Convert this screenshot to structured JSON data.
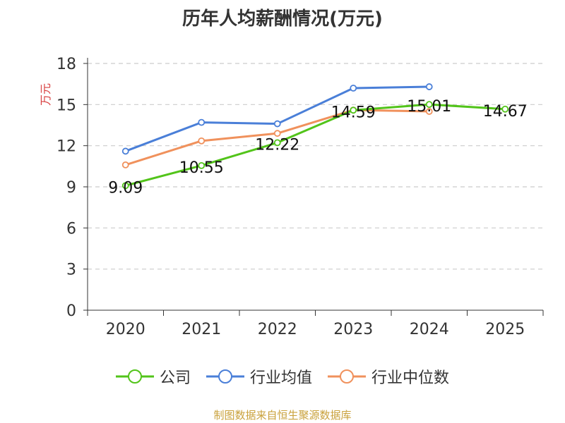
{
  "chart_data": {
    "type": "line",
    "title": "历年人均薪酬情况(万元)",
    "ylabel": "万元",
    "xlabel": "",
    "categories": [
      "2020",
      "2021",
      "2022",
      "2023",
      "2024",
      "2025"
    ],
    "ylim": [
      0,
      18
    ],
    "yticks": [
      0,
      3,
      6,
      9,
      12,
      15,
      18
    ],
    "grid": true,
    "legend_position": "bottom",
    "series": [
      {
        "name": "公司",
        "color": "#52c41a",
        "values": [
          9.09,
          10.55,
          12.22,
          14.59,
          15.01,
          14.67
        ],
        "labels": [
          "9.09",
          "10.55",
          "12.22",
          "14.59",
          "15.01",
          "14.67"
        ]
      },
      {
        "name": "行业均值",
        "color": "#4a7fd8",
        "values": [
          11.6,
          13.7,
          13.6,
          16.2,
          16.3,
          null
        ]
      },
      {
        "name": "行业中位数",
        "color": "#f0915c",
        "values": [
          10.6,
          12.35,
          12.9,
          14.6,
          14.5,
          null
        ]
      }
    ]
  },
  "footer": "制图数据来自恒生聚源数据库"
}
